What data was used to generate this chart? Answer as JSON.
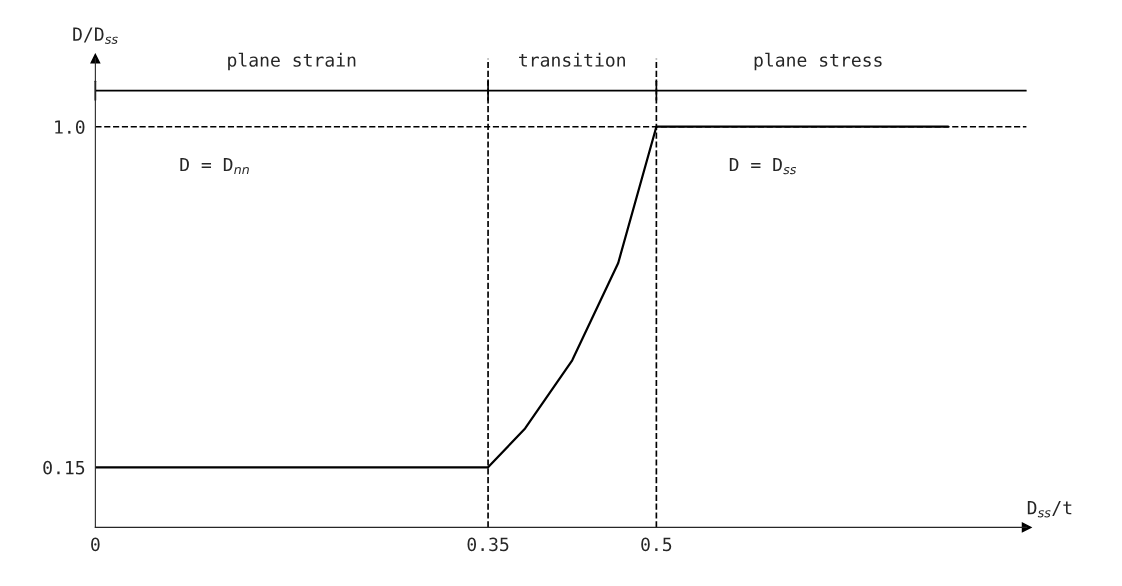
{
  "chart_data": {
    "type": "line",
    "xlabel": "D$_{ss}$/t",
    "ylabel": "D/D$_{ss}$",
    "x": [
      0,
      0.35,
      0.383,
      0.425,
      0.466,
      0.49,
      0.5,
      0.76
    ],
    "series": [
      {
        "color": "#000000",
        "values": [
          0.15,
          0.15,
          0.247,
          0.417,
          0.66,
          0.9,
          1.0,
          1.0
        ]
      }
    ],
    "xlim": [
      0,
      0.83
    ],
    "ylim": [
      0,
      1.17
    ],
    "xticks": [
      0,
      0.35,
      0.5
    ],
    "yticks": [
      0.15,
      {
        "value": 1.0,
        "label": "1.0"
      }
    ],
    "ref_lines": [
      {
        "axis": "y",
        "value": 1.09,
        "line_style": "solid",
        "color": "#000000"
      },
      {
        "axis": "y",
        "value": 1.0,
        "line_style": "dashed",
        "color": "#000000"
      },
      {
        "axis": "x",
        "value": 0.35,
        "line_style": "dashed",
        "color": "#000000"
      },
      {
        "axis": "x",
        "value": 0.5,
        "line_style": "dashed",
        "color": "#000000"
      }
    ],
    "annotations": [
      "D = D$_{nn}$",
      "D = D$_{ss}$",
      "plane strain",
      "transition",
      "plane stress"
    ],
    "grid": false,
    "legend": false,
    "marker": "none",
    "line_style": "solid"
  }
}
